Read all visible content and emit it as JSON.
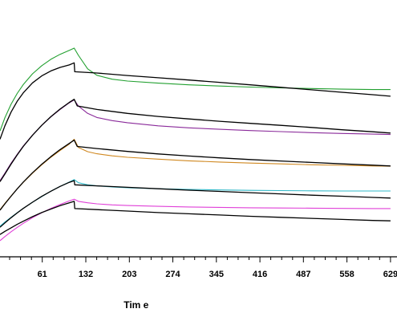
{
  "chart_data": {
    "type": "line",
    "title": "",
    "xlabel": "Tim e",
    "ylabel": "",
    "xlim": [
      -8,
      637
    ],
    "ylim": [
      0,
      100
    ],
    "x_ticks": [
      61,
      132,
      203,
      274,
      345,
      416,
      487,
      558,
      629
    ],
    "grid": false,
    "legend": "none",
    "association_end": 113,
    "series": [
      {
        "role": "data",
        "color": "#22a030",
        "x": [
          -8,
          0,
          10,
          20,
          30,
          45,
          60,
          75,
          90,
          105,
          113,
          120,
          135,
          150,
          175,
          200,
          250,
          300,
          350,
          400,
          450,
          500,
          550,
          600,
          629
        ],
        "y": [
          60.0,
          66.4,
          72.9,
          78.1,
          82.4,
          87.6,
          91.5,
          94.6,
          97.0,
          98.9,
          100.0,
          96.5,
          90.0,
          86.9,
          85.0,
          84.1,
          83.1,
          82.3,
          81.7,
          81.2,
          80.8,
          80.5,
          80.2,
          80.0,
          80.0
        ]
      },
      {
        "role": "fit",
        "color": "#000000",
        "x": [
          -8,
          0,
          10,
          20,
          30,
          45,
          60,
          75,
          90,
          105,
          113,
          114,
          150,
          200,
          250,
          300,
          350,
          400,
          450,
          500,
          550,
          600,
          629
        ],
        "y": [
          56.0,
          62.5,
          69.1,
          74.3,
          78.4,
          83.2,
          86.6,
          89.0,
          90.7,
          91.9,
          92.9,
          88.6,
          88.0,
          86.8,
          85.7,
          84.6,
          83.5,
          82.3,
          81.1,
          79.9,
          78.7,
          77.5,
          76.8
        ]
      },
      {
        "role": "data",
        "color": "#8a2a9a",
        "x": [
          -8,
          0,
          10,
          20,
          30,
          45,
          60,
          75,
          90,
          105,
          113,
          120,
          135,
          150,
          175,
          200,
          250,
          300,
          350,
          400,
          450,
          500,
          550,
          600,
          629
        ],
        "y": [
          36.0,
          39.6,
          44.4,
          48.7,
          52.7,
          58.0,
          62.7,
          66.8,
          70.4,
          73.6,
          75.0,
          72.0,
          68.5,
          66.5,
          65.0,
          64.0,
          62.5,
          61.5,
          60.8,
          60.2,
          59.7,
          59.2,
          58.8,
          58.5,
          58.3
        ]
      },
      {
        "role": "fit",
        "color": "#000000",
        "x": [
          -8,
          0,
          10,
          20,
          30,
          45,
          60,
          75,
          90,
          105,
          113,
          118,
          150,
          200,
          250,
          300,
          350,
          400,
          450,
          500,
          550,
          600,
          629
        ],
        "y": [
          35.5,
          39.2,
          44.0,
          48.4,
          52.5,
          57.9,
          62.7,
          66.9,
          70.6,
          73.8,
          75.3,
          72.1,
          70.4,
          68.5,
          67.0,
          65.8,
          64.7,
          63.7,
          62.7,
          61.7,
          60.6,
          59.6,
          59.0
        ]
      },
      {
        "role": "data",
        "color": "#d08820",
        "x": [
          -8,
          0,
          10,
          20,
          30,
          45,
          60,
          75,
          90,
          105,
          113,
          120,
          135,
          150,
          175,
          200,
          250,
          300,
          350,
          400,
          450,
          500,
          550,
          600,
          629
        ],
        "y": [
          22.0,
          25.0,
          28.6,
          32.0,
          35.2,
          39.6,
          43.6,
          47.3,
          50.6,
          53.7,
          56.0,
          52.0,
          50.0,
          49.0,
          48.0,
          47.3,
          46.4,
          45.6,
          45.0,
          44.5,
          44.1,
          43.7,
          43.4,
          43.1,
          43.0
        ]
      },
      {
        "role": "fit",
        "color": "#000000",
        "x": [
          -8,
          0,
          10,
          20,
          30,
          45,
          60,
          75,
          90,
          105,
          113,
          118,
          150,
          200,
          250,
          300,
          350,
          400,
          450,
          500,
          550,
          600,
          629
        ],
        "y": [
          21.7,
          24.8,
          28.5,
          32.0,
          35.3,
          39.8,
          43.9,
          47.6,
          51.0,
          54.0,
          55.6,
          52.5,
          51.5,
          50.1,
          48.9,
          47.9,
          47.0,
          46.2,
          45.5,
          44.8,
          44.1,
          43.5,
          43.1
        ]
      },
      {
        "role": "data",
        "color": "#30b8c8",
        "x": [
          -8,
          0,
          10,
          20,
          30,
          45,
          60,
          75,
          90,
          105,
          113,
          120,
          135,
          150,
          175,
          200,
          250,
          300,
          350,
          400,
          450,
          500,
          550,
          600,
          629
        ],
        "y": [
          14.0,
          16.0,
          18.3,
          20.5,
          22.6,
          25.6,
          28.3,
          30.9,
          33.2,
          35.3,
          36.5,
          35.0,
          34.0,
          33.5,
          33.0,
          32.6,
          32.1,
          31.8,
          31.5,
          31.3,
          31.2,
          31.1,
          31.0,
          31.0,
          31.0
        ]
      },
      {
        "role": "fit",
        "color": "#000000",
        "x": [
          -8,
          0,
          10,
          20,
          30,
          45,
          60,
          75,
          90,
          105,
          113,
          114,
          150,
          200,
          250,
          300,
          350,
          400,
          450,
          500,
          550,
          600,
          629
        ],
        "y": [
          13.5,
          15.6,
          18.1,
          20.4,
          22.6,
          25.6,
          28.4,
          30.9,
          33.2,
          35.2,
          36.0,
          34.0,
          33.5,
          32.8,
          32.1,
          31.4,
          30.8,
          30.2,
          29.6,
          29.0,
          28.5,
          27.9,
          27.6
        ]
      },
      {
        "role": "data",
        "color": "#e040d8",
        "x": [
          -8,
          0,
          10,
          20,
          30,
          45,
          60,
          75,
          90,
          105,
          113,
          120,
          135,
          150,
          175,
          200,
          250,
          300,
          350,
          400,
          450,
          500,
          550,
          600,
          629
        ],
        "y": [
          7.0,
          9.0,
          11.3,
          13.4,
          15.4,
          18.1,
          20.5,
          22.6,
          24.5,
          26.2,
          27.0,
          26.0,
          25.3,
          24.8,
          24.3,
          24.0,
          23.6,
          23.3,
          23.1,
          22.9,
          22.8,
          22.7,
          22.6,
          22.5,
          22.5
        ]
      },
      {
        "role": "fit",
        "color": "#000000",
        "x": [
          -8,
          0,
          10,
          20,
          30,
          45,
          60,
          75,
          90,
          105,
          113,
          114,
          150,
          200,
          250,
          300,
          350,
          400,
          450,
          500,
          550,
          600,
          629
        ],
        "y": [
          10.0,
          11.5,
          13.2,
          14.9,
          16.4,
          18.6,
          20.6,
          22.3,
          23.9,
          25.3,
          26.0,
          22.5,
          22.0,
          21.3,
          20.6,
          20.0,
          19.4,
          18.8,
          18.3,
          17.8,
          17.3,
          16.8,
          16.6
        ]
      }
    ]
  }
}
